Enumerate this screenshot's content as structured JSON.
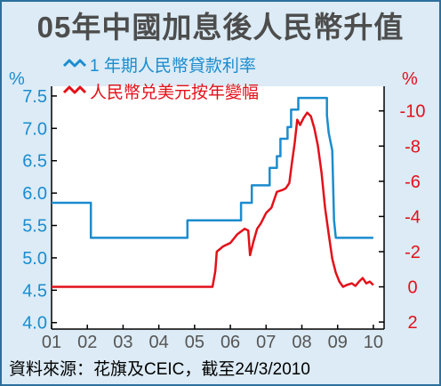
{
  "title": "05年中國加息後人民幣升值",
  "source": "資料來源：花旗及CEIC，截至24/3/2010",
  "colors": {
    "rate": "#1b8ccf",
    "fx": "#e3101a",
    "background": "#dcebf5",
    "plot_bg": "#ffffff"
  },
  "chart_data": {
    "type": "line",
    "grid": false,
    "x_ticks": [
      "01",
      "02",
      "03",
      "04",
      "05",
      "06",
      "07",
      "08",
      "09",
      "10"
    ],
    "left_axis": {
      "unit": "%",
      "ylim": [
        3.9,
        7.65
      ],
      "ticks": [
        "4.0",
        "4.5",
        "5.0",
        "5.5",
        "6.0",
        "6.5",
        "7.0",
        "7.5"
      ]
    },
    "right_axis": {
      "unit": "%",
      "inverted": true,
      "ylim": [
        2.4,
        -11.4
      ],
      "ticks": [
        "-10",
        "-8",
        "-6",
        "-4",
        "-2",
        "0",
        "2"
      ]
    },
    "legend": {
      "placement": "top-left"
    },
    "series": [
      {
        "name": "1 年期人民幣貸款利率",
        "axis": "left",
        "color": "#1b8ccf",
        "points": [
          [
            2001.0,
            5.85
          ],
          [
            2002.1,
            5.85
          ],
          [
            2002.1,
            5.31
          ],
          [
            2004.8,
            5.31
          ],
          [
            2004.8,
            5.58
          ],
          [
            2006.3,
            5.58
          ],
          [
            2006.3,
            5.85
          ],
          [
            2006.6,
            5.85
          ],
          [
            2006.6,
            6.12
          ],
          [
            2007.1,
            6.12
          ],
          [
            2007.1,
            6.39
          ],
          [
            2007.3,
            6.39
          ],
          [
            2007.3,
            6.57
          ],
          [
            2007.4,
            6.57
          ],
          [
            2007.4,
            6.84
          ],
          [
            2007.6,
            6.84
          ],
          [
            2007.6,
            7.02
          ],
          [
            2007.7,
            7.02
          ],
          [
            2007.7,
            7.29
          ],
          [
            2007.9,
            7.29
          ],
          [
            2007.9,
            7.47
          ],
          [
            2008.7,
            7.47
          ],
          [
            2008.7,
            7.2
          ],
          [
            2008.75,
            6.93
          ],
          [
            2008.85,
            6.66
          ],
          [
            2008.9,
            5.58
          ],
          [
            2008.95,
            5.31
          ],
          [
            2010.0,
            5.31
          ]
        ]
      },
      {
        "name": "人民幣兑美元按年變幅",
        "axis": "right",
        "color": "#e3101a",
        "points": [
          [
            2001.0,
            0.0
          ],
          [
            2005.5,
            0.0
          ],
          [
            2005.58,
            -0.9
          ],
          [
            2005.62,
            -2.0
          ],
          [
            2005.8,
            -2.3
          ],
          [
            2006.0,
            -2.5
          ],
          [
            2006.2,
            -3.0
          ],
          [
            2006.4,
            -3.3
          ],
          [
            2006.5,
            -3.2
          ],
          [
            2006.55,
            -1.8
          ],
          [
            2006.65,
            -2.6
          ],
          [
            2006.75,
            -3.3
          ],
          [
            2006.85,
            -3.6
          ],
          [
            2007.0,
            -4.2
          ],
          [
            2007.15,
            -4.5
          ],
          [
            2007.3,
            -5.4
          ],
          [
            2007.45,
            -5.5
          ],
          [
            2007.55,
            -5.6
          ],
          [
            2007.65,
            -5.9
          ],
          [
            2007.72,
            -7.0
          ],
          [
            2007.8,
            -8.2
          ],
          [
            2007.87,
            -9.5
          ],
          [
            2007.95,
            -9.2
          ],
          [
            2008.05,
            -9.6
          ],
          [
            2008.15,
            -9.9
          ],
          [
            2008.25,
            -9.7
          ],
          [
            2008.35,
            -9.0
          ],
          [
            2008.45,
            -8.0
          ],
          [
            2008.55,
            -6.5
          ],
          [
            2008.65,
            -4.5
          ],
          [
            2008.75,
            -3.0
          ],
          [
            2008.85,
            -1.6
          ],
          [
            2008.95,
            -0.8
          ],
          [
            2009.05,
            -0.3
          ],
          [
            2009.15,
            0.0
          ],
          [
            2009.25,
            -0.1
          ],
          [
            2009.4,
            -0.2
          ],
          [
            2009.5,
            -0.05
          ],
          [
            2009.6,
            -0.3
          ],
          [
            2009.7,
            -0.5
          ],
          [
            2009.8,
            -0.2
          ],
          [
            2009.9,
            -0.3
          ],
          [
            2010.0,
            -0.1
          ]
        ]
      }
    ]
  }
}
